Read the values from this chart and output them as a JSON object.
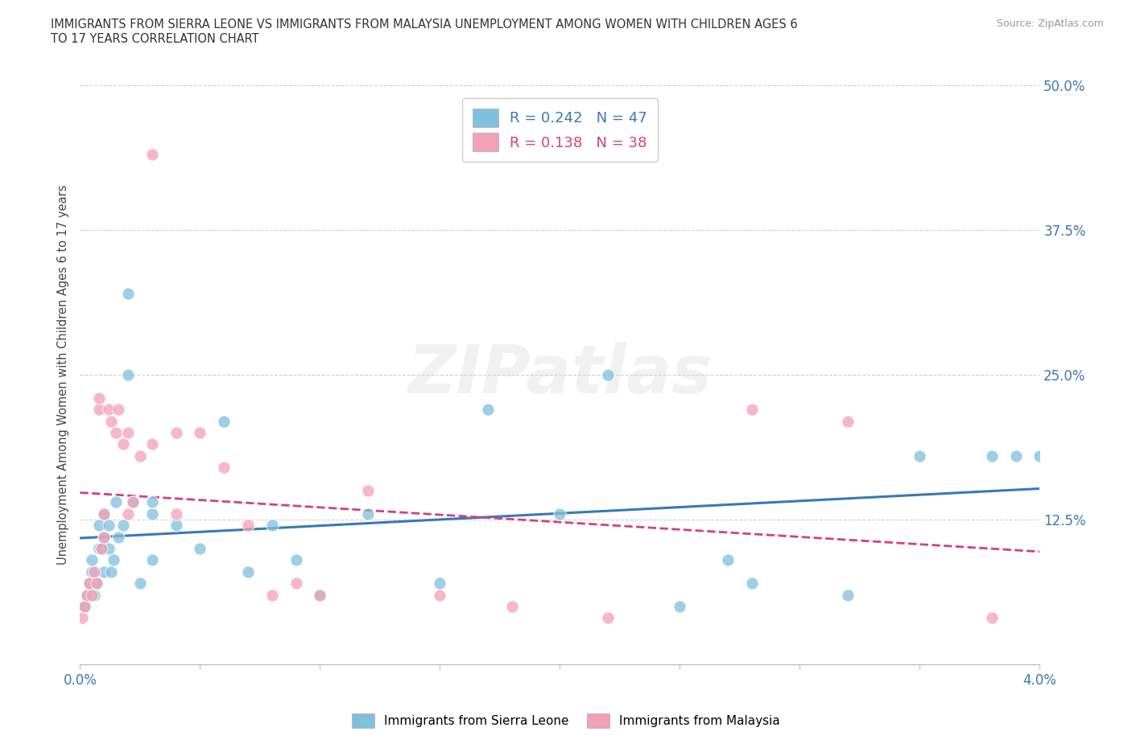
{
  "title": "IMMIGRANTS FROM SIERRA LEONE VS IMMIGRANTS FROM MALAYSIA UNEMPLOYMENT AMONG WOMEN WITH CHILDREN AGES 6\nTO 17 YEARS CORRELATION CHART",
  "source": "Source: ZipAtlas.com",
  "ylabel": "Unemployment Among Women with Children Ages 6 to 17 years",
  "xlim": [
    0.0,
    0.04
  ],
  "ylim": [
    0.0,
    0.5
  ],
  "yticks": [
    0.0,
    0.125,
    0.25,
    0.375,
    0.5
  ],
  "ytick_labels": [
    "",
    "12.5%",
    "25.0%",
    "37.5%",
    "50.0%"
  ],
  "xtick_positions": [
    0.0,
    0.005,
    0.01,
    0.015,
    0.02,
    0.025,
    0.03,
    0.035,
    0.04
  ],
  "xtick_labels": [
    "0.0%",
    "",
    "",
    "",
    "",
    "",
    "",
    "",
    "4.0%"
  ],
  "sierra_leone_color": "#7fbfdf",
  "malaysia_color": "#f4a0b5",
  "sierra_leone_line_color": "#3a78b5",
  "malaysia_line_color": "#d44080",
  "R_sierra": 0.242,
  "N_sierra": 47,
  "R_malaysia": 0.138,
  "N_malaysia": 38,
  "legend_sierra": "Immigrants from Sierra Leone",
  "legend_malaysia": "Immigrants from Malaysia",
  "watermark": "ZIPatlas",
  "grid_color": "#d0d0d0",
  "background_color": "#ffffff",
  "sierra_leone_x": [
    0.0002,
    0.0003,
    0.0004,
    0.0005,
    0.0005,
    0.0006,
    0.0007,
    0.0008,
    0.0008,
    0.0009,
    0.001,
    0.001,
    0.001,
    0.0012,
    0.0012,
    0.0013,
    0.0014,
    0.0015,
    0.0016,
    0.0018,
    0.002,
    0.002,
    0.0022,
    0.0025,
    0.003,
    0.003,
    0.003,
    0.004,
    0.005,
    0.006,
    0.007,
    0.008,
    0.009,
    0.01,
    0.012,
    0.015,
    0.017,
    0.02,
    0.022,
    0.025,
    0.027,
    0.028,
    0.032,
    0.035,
    0.038,
    0.039,
    0.04
  ],
  "sierra_leone_y": [
    0.05,
    0.06,
    0.07,
    0.08,
    0.09,
    0.06,
    0.07,
    0.1,
    0.12,
    0.1,
    0.08,
    0.11,
    0.13,
    0.1,
    0.12,
    0.08,
    0.09,
    0.14,
    0.11,
    0.12,
    0.25,
    0.32,
    0.14,
    0.07,
    0.13,
    0.14,
    0.09,
    0.12,
    0.1,
    0.21,
    0.08,
    0.12,
    0.09,
    0.06,
    0.13,
    0.07,
    0.22,
    0.13,
    0.25,
    0.05,
    0.09,
    0.07,
    0.06,
    0.18,
    0.18,
    0.18,
    0.18
  ],
  "malaysia_x": [
    0.0001,
    0.0002,
    0.0003,
    0.0004,
    0.0005,
    0.0006,
    0.0007,
    0.0008,
    0.0008,
    0.0009,
    0.001,
    0.001,
    0.0012,
    0.0013,
    0.0015,
    0.0016,
    0.0018,
    0.002,
    0.002,
    0.0022,
    0.0025,
    0.003,
    0.003,
    0.004,
    0.004,
    0.005,
    0.006,
    0.007,
    0.008,
    0.009,
    0.01,
    0.012,
    0.015,
    0.018,
    0.022,
    0.028,
    0.032,
    0.038
  ],
  "malaysia_y": [
    0.04,
    0.05,
    0.06,
    0.07,
    0.06,
    0.08,
    0.07,
    0.22,
    0.23,
    0.1,
    0.11,
    0.13,
    0.22,
    0.21,
    0.2,
    0.22,
    0.19,
    0.2,
    0.13,
    0.14,
    0.18,
    0.19,
    0.44,
    0.2,
    0.13,
    0.2,
    0.17,
    0.12,
    0.06,
    0.07,
    0.06,
    0.15,
    0.06,
    0.05,
    0.04,
    0.22,
    0.21,
    0.04
  ]
}
